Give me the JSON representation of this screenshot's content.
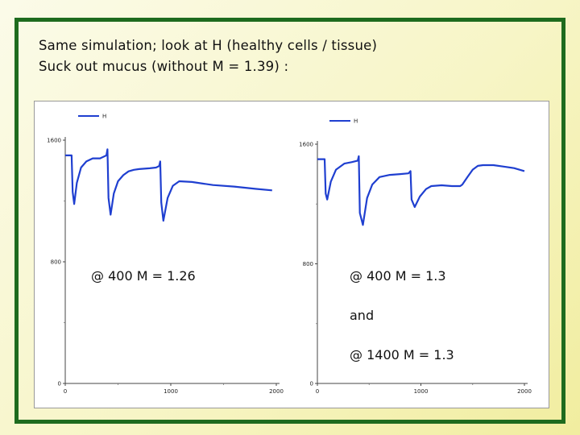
{
  "slide": {
    "title_line1": "Same simulation; look at H (healthy cells / tissue)",
    "title_line2": "Suck out mucus (without M = 1.39) :",
    "colors": {
      "frame": "#1e6b1e",
      "series": "#1f3fd0"
    }
  },
  "chart_data": [
    {
      "type": "line",
      "title": "",
      "xlabel": "",
      "ylabel": "",
      "xlim": [
        0,
        2000
      ],
      "ylim": [
        0,
        1600
      ],
      "x_ticks": [
        "0",
        "1000",
        "2000"
      ],
      "y_ticks": [
        "0",
        "800",
        "1600"
      ],
      "legend": [
        "H"
      ],
      "annotations": [
        "@ 400 M = 1.26"
      ],
      "series": [
        {
          "name": "H",
          "x": [
            0,
            60,
            70,
            85,
            110,
            150,
            200,
            260,
            330,
            390,
            400,
            410,
            430,
            460,
            500,
            550,
            600,
            650,
            700,
            800,
            860,
            890,
            900,
            910,
            930,
            970,
            1020,
            1080,
            1200,
            1400,
            1600,
            1800,
            1960
          ],
          "y": [
            1500,
            1500,
            1260,
            1180,
            1320,
            1420,
            1460,
            1480,
            1480,
            1500,
            1540,
            1220,
            1110,
            1250,
            1330,
            1370,
            1395,
            1405,
            1410,
            1415,
            1420,
            1430,
            1460,
            1190,
            1070,
            1220,
            1300,
            1330,
            1325,
            1305,
            1295,
            1280,
            1270
          ]
        }
      ]
    },
    {
      "type": "line",
      "title": "",
      "xlabel": "",
      "ylabel": "",
      "xlim": [
        0,
        2000
      ],
      "ylim": [
        0,
        1600
      ],
      "x_ticks": [
        "0",
        "1000",
        "2000"
      ],
      "y_ticks": [
        "0",
        "800",
        "1600"
      ],
      "legend": [
        "H"
      ],
      "annotations": [
        "@ 400 M = 1.3",
        "and",
        "@ 1400 M = 1.3"
      ],
      "series": [
        {
          "name": "H",
          "x": [
            0,
            70,
            80,
            95,
            130,
            180,
            260,
            330,
            390,
            400,
            410,
            440,
            480,
            530,
            600,
            700,
            800,
            880,
            900,
            910,
            940,
            990,
            1050,
            1100,
            1200,
            1300,
            1380,
            1400,
            1450,
            1500,
            1550,
            1600,
            1700,
            1800,
            1900,
            2000
          ],
          "y": [
            1500,
            1500,
            1270,
            1230,
            1350,
            1430,
            1470,
            1480,
            1490,
            1520,
            1140,
            1060,
            1240,
            1330,
            1380,
            1395,
            1400,
            1405,
            1420,
            1230,
            1180,
            1250,
            1300,
            1320,
            1325,
            1320,
            1320,
            1330,
            1380,
            1430,
            1455,
            1460,
            1460,
            1450,
            1440,
            1420
          ]
        }
      ]
    }
  ]
}
